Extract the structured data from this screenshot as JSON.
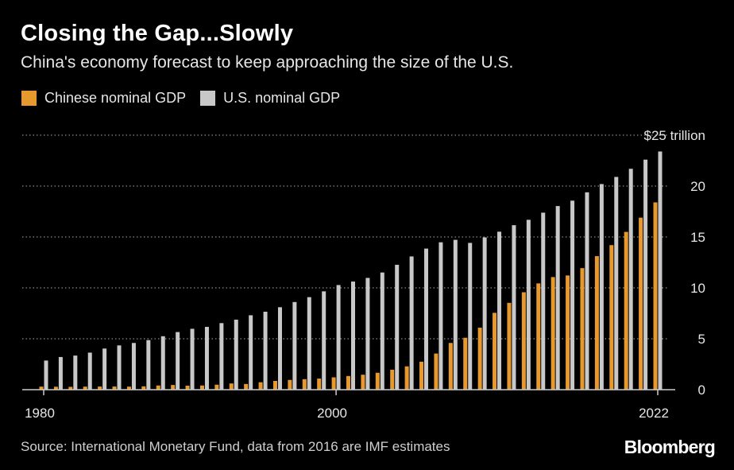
{
  "header": {
    "title": "Closing the Gap...Slowly",
    "subtitle": "China's economy forecast to keep approaching the size of the U.S."
  },
  "footer": {
    "source": "Source: International Monetary Fund, data from 2016 are IMF estimates",
    "brand": "Bloomberg"
  },
  "colors": {
    "china": "#e8992e",
    "us": "#c8c8c8",
    "grid": "#8a8a8a",
    "axis": "#cccccc"
  },
  "chart_data": {
    "type": "bar",
    "title": "Closing the Gap...Slowly",
    "subtitle": "China's economy forecast to keep approaching the size of the U.S.",
    "xlabel": "",
    "ylabel": "",
    "ylim": [
      0,
      25
    ],
    "yticks": [
      "0",
      "5",
      "10",
      "15",
      "20",
      "$25 trillion"
    ],
    "xticks": [
      "1980",
      "2000",
      "2022"
    ],
    "grid": true,
    "legend_position": "top-left",
    "categories": [
      1980,
      1981,
      1982,
      1983,
      1984,
      1985,
      1986,
      1987,
      1988,
      1989,
      1990,
      1991,
      1992,
      1993,
      1994,
      1995,
      1996,
      1997,
      1998,
      1999,
      2000,
      2001,
      2002,
      2003,
      2004,
      2005,
      2006,
      2007,
      2008,
      2009,
      2010,
      2011,
      2012,
      2013,
      2014,
      2015,
      2016,
      2017,
      2018,
      2019,
      2020,
      2021,
      2022
    ],
    "series": [
      {
        "name": "Chinese nominal GDP",
        "values": [
          0.3,
          0.29,
          0.28,
          0.3,
          0.31,
          0.31,
          0.3,
          0.33,
          0.41,
          0.46,
          0.39,
          0.41,
          0.49,
          0.61,
          0.56,
          0.73,
          0.86,
          0.96,
          1.03,
          1.09,
          1.21,
          1.34,
          1.47,
          1.66,
          1.96,
          2.29,
          2.75,
          3.55,
          4.59,
          5.1,
          6.09,
          7.55,
          8.53,
          9.57,
          10.44,
          11.06,
          11.22,
          11.94,
          13.12,
          14.2,
          15.5,
          16.9,
          18.4
        ]
      },
      {
        "name": "U.S. nominal GDP",
        "values": [
          2.86,
          3.21,
          3.35,
          3.64,
          4.04,
          4.35,
          4.59,
          4.87,
          5.25,
          5.66,
          5.98,
          6.17,
          6.54,
          6.88,
          7.31,
          7.66,
          8.1,
          8.61,
          9.09,
          9.66,
          10.28,
          10.62,
          10.98,
          11.51,
          12.27,
          13.09,
          13.86,
          14.48,
          14.72,
          14.42,
          14.96,
          15.52,
          16.16,
          16.69,
          17.39,
          18.04,
          18.57,
          19.39,
          20.2,
          20.9,
          21.7,
          22.6,
          23.4
        ]
      }
    ]
  }
}
